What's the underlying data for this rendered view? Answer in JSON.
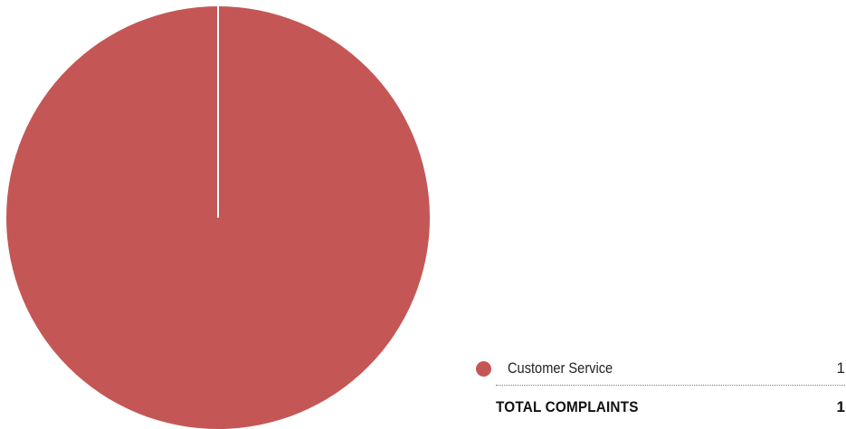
{
  "chart_data": {
    "type": "pie",
    "categories": [
      "Customer Service"
    ],
    "values": [
      1
    ],
    "colors": [
      "#c45755"
    ],
    "total_label": "TOTAL COMPLAINTS",
    "total_value": "1"
  },
  "legend": {
    "items": [
      {
        "label": "Customer Service",
        "value": "1",
        "color": "#c45755"
      }
    ],
    "total": {
      "label": "TOTAL COMPLAINTS",
      "value": "1"
    }
  }
}
